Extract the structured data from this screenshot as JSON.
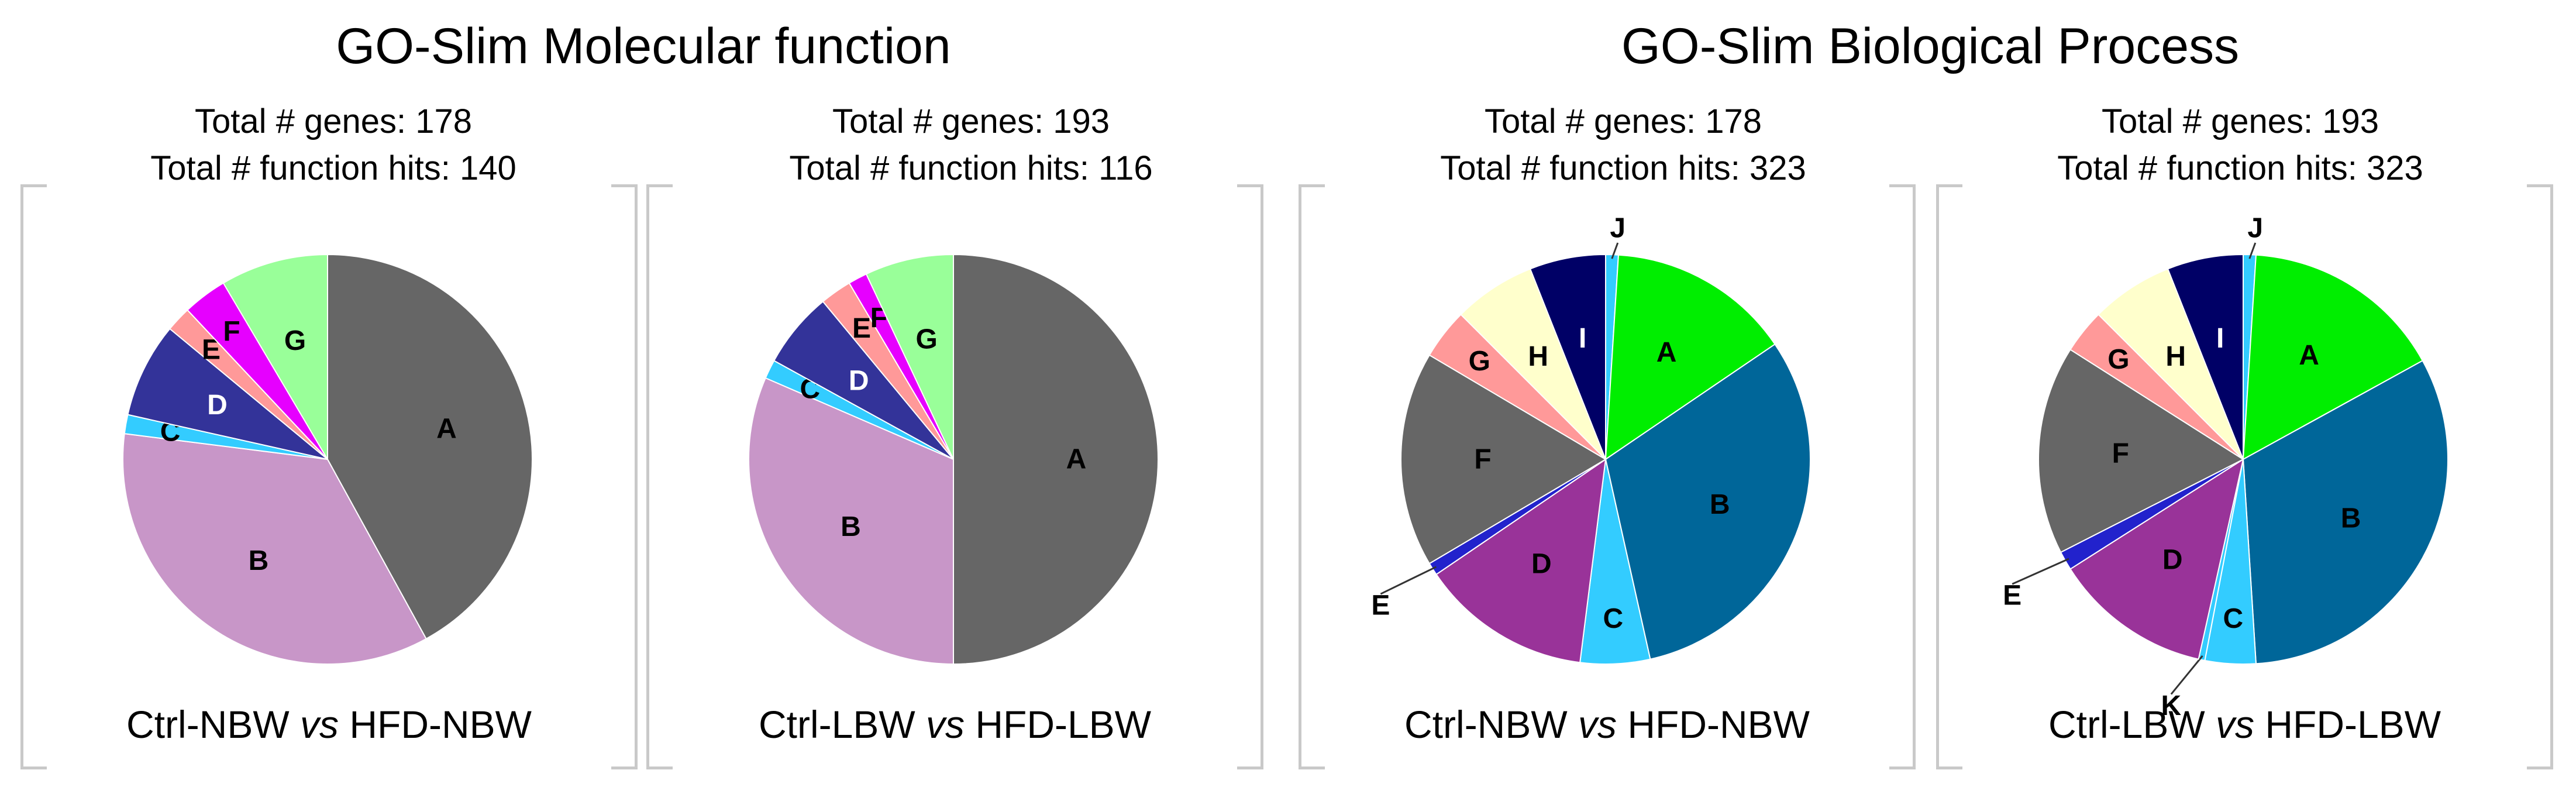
{
  "titles": {
    "molecular": "GO-Slim Molecular function",
    "biological": "GO-Slim Biological Process"
  },
  "chart_data": [
    {
      "type": "pie",
      "group": "molecular",
      "stats_line1": "Total # genes: 178",
      "stats_line2": "Total # function hits: 140",
      "caption_left": "Ctrl-NBW",
      "caption_vs": "vs",
      "caption_right": "HFD-NBW",
      "start_angle": 0,
      "slices": [
        {
          "label": "A",
          "value": 42.0,
          "color": "#666666"
        },
        {
          "label": "B",
          "value": 35.0,
          "color": "#c896c8"
        },
        {
          "label": "C",
          "value": 1.5,
          "color": "#33ccff"
        },
        {
          "label": "D",
          "value": 7.5,
          "color": "#333399"
        },
        {
          "label": "E",
          "value": 2.0,
          "color": "#ff9999"
        },
        {
          "label": "F",
          "value": 3.5,
          "color": "#e600ff"
        },
        {
          "label": "G",
          "value": 8.5,
          "color": "#99ff99"
        }
      ]
    },
    {
      "type": "pie",
      "group": "molecular",
      "stats_line1": "Total # genes: 193",
      "stats_line2": "Total # function hits: 116",
      "caption_left": "Ctrl-LBW",
      "caption_vs": "vs",
      "caption_right": "HFD-LBW",
      "start_angle": 0,
      "slices": [
        {
          "label": "A",
          "value": 50.0,
          "color": "#666666"
        },
        {
          "label": "B",
          "value": 31.5,
          "color": "#c896c8"
        },
        {
          "label": "C",
          "value": 1.5,
          "color": "#33ccff"
        },
        {
          "label": "D",
          "value": 6.0,
          "color": "#333399"
        },
        {
          "label": "E",
          "value": 2.5,
          "color": "#ff9999"
        },
        {
          "label": "F",
          "value": 1.5,
          "color": "#e600ff"
        },
        {
          "label": "G",
          "value": 7.0,
          "color": "#99ff99"
        }
      ]
    },
    {
      "type": "pie",
      "group": "biological",
      "stats_line1": "Total # genes: 178",
      "stats_line2": "Total # function hits: 323",
      "caption_left": "Ctrl-NBW",
      "caption_vs": "vs",
      "caption_right": "HFD-NBW",
      "start_angle": 0,
      "slices": [
        {
          "label": "J",
          "value": 1.0,
          "color": "#33ccff"
        },
        {
          "label": "A",
          "value": 14.5,
          "color": "#00ee00"
        },
        {
          "label": "B",
          "value": 31.0,
          "color": "#006699"
        },
        {
          "label": "C",
          "value": 5.5,
          "color": "#33ccff"
        },
        {
          "label": "D",
          "value": 13.5,
          "color": "#993399"
        },
        {
          "label": "E",
          "value": 1.0,
          "color": "#2222cc"
        },
        {
          "label": "F",
          "value": 17.0,
          "color": "#666666"
        },
        {
          "label": "G",
          "value": 4.0,
          "color": "#ff9999"
        },
        {
          "label": "H",
          "value": 6.5,
          "color": "#ffffcc"
        },
        {
          "label": "I",
          "value": 6.0,
          "color": "#000066"
        }
      ]
    },
    {
      "type": "pie",
      "group": "biological",
      "stats_line1": "Total # genes: 193",
      "stats_line2": "Total # function hits: 323",
      "caption_left": "Ctrl-LBW",
      "caption_vs": "vs",
      "caption_right": "HFD-LBW",
      "start_angle": 0,
      "slices": [
        {
          "label": "J",
          "value": 1.0,
          "color": "#33ccff"
        },
        {
          "label": "A",
          "value": 16.0,
          "color": "#00ee00"
        },
        {
          "label": "B",
          "value": 32.0,
          "color": "#006699"
        },
        {
          "label": "C",
          "value": 4.0,
          "color": "#33ccff"
        },
        {
          "label": "K",
          "value": 0.5,
          "color": "#33ccff"
        },
        {
          "label": "D",
          "value": 12.5,
          "color": "#993399"
        },
        {
          "label": "E",
          "value": 1.5,
          "color": "#2222cc"
        },
        {
          "label": "F",
          "value": 16.5,
          "color": "#666666"
        },
        {
          "label": "G",
          "value": 3.5,
          "color": "#ff9999"
        },
        {
          "label": "H",
          "value": 6.5,
          "color": "#ffffcc"
        },
        {
          "label": "I",
          "value": 6.0,
          "color": "#000066"
        }
      ]
    }
  ]
}
